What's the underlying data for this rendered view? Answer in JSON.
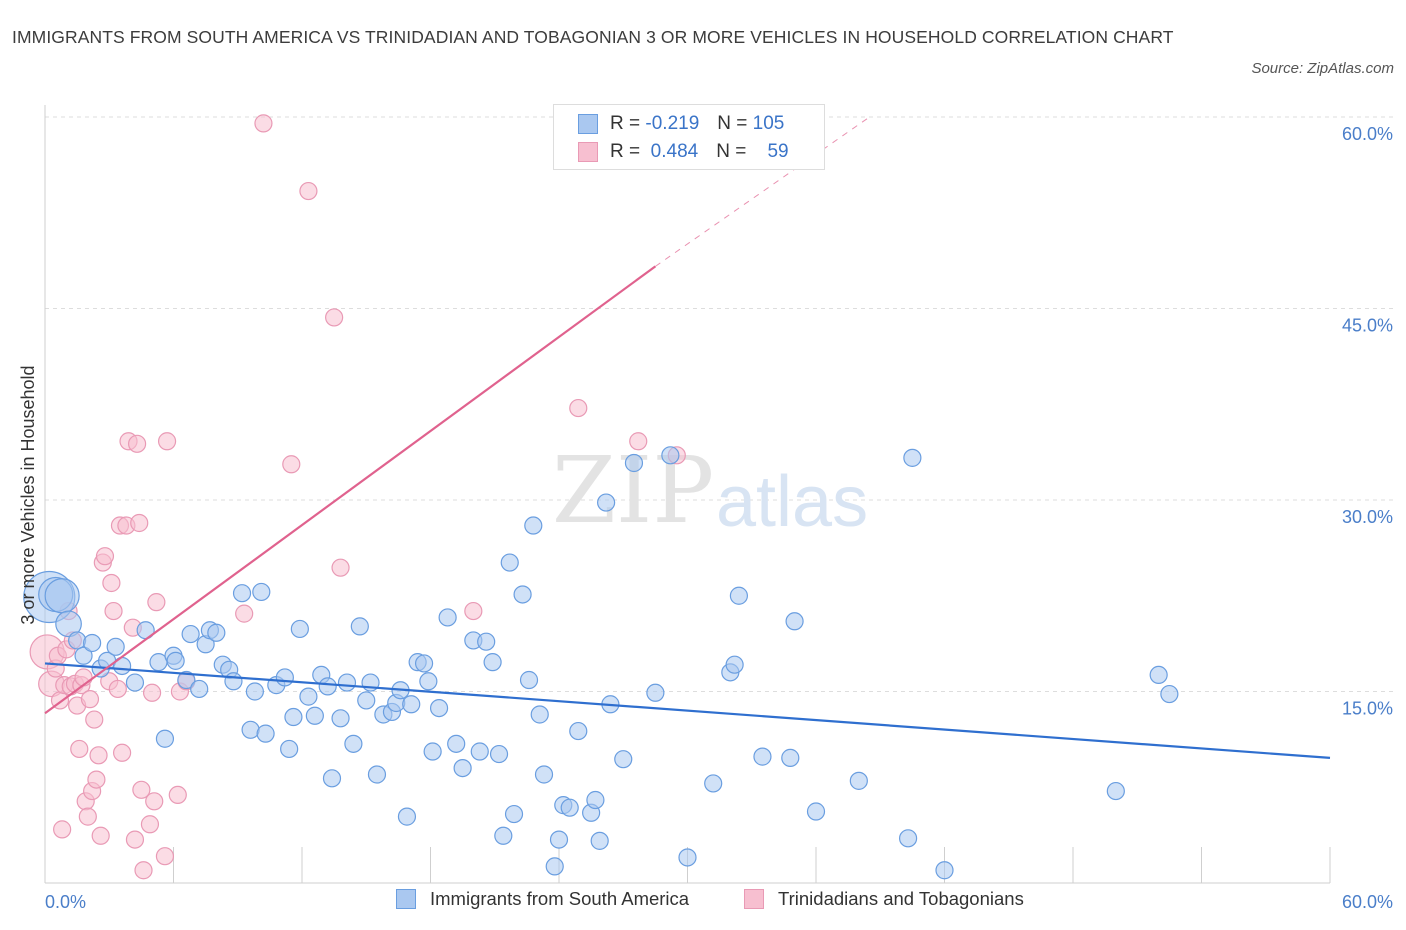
{
  "title": "IMMIGRANTS FROM SOUTH AMERICA VS TRINIDADIAN AND TOBAGONIAN 3 OR MORE VEHICLES IN HOUSEHOLD CORRELATION CHART",
  "source": "Source: ZipAtlas.com",
  "colors": {
    "blue_fill": "#aac8f0",
    "blue_stroke": "#6a9ee0",
    "blue_line": "#2f6fcf",
    "pink_fill": "#f7bfd0",
    "pink_stroke": "#e99ab5",
    "pink_line": "#e0628e",
    "grid": "#dddddd",
    "tick_text": "#4a7ec9"
  },
  "legend": {
    "blue": {
      "r_label": "R =",
      "r_value": "-0.219",
      "n_label": "N =",
      "n_value": "105"
    },
    "pink": {
      "r_label": "R =",
      "r_value": "0.484",
      "n_label": "N =",
      "n_value": "59"
    }
  },
  "bottom_legend": {
    "blue": "Immigrants from South America",
    "pink": "Trinidadians and Tobagonians"
  },
  "watermark": {
    "zip": "ZIP",
    "atlas": "atlas"
  },
  "chart_data": {
    "type": "scatter",
    "title": "IMMIGRANTS FROM SOUTH AMERICA VS TRINIDADIAN AND TOBAGONIAN 3 OR MORE VEHICLES IN HOUSEHOLD CORRELATION CHART",
    "xlabel": "",
    "ylabel": "3 or more Vehicles in Household",
    "xlim": [
      0,
      60
    ],
    "ylim": [
      0,
      60
    ],
    "x_tick_labels": [
      "0.0%",
      "60.0%"
    ],
    "y_ticks": [
      15,
      30,
      45,
      60
    ],
    "y_tick_labels": [
      "15.0%",
      "30.0%",
      "45.0%",
      "60.0%"
    ],
    "grid": true,
    "series": [
      {
        "name": "Immigrants from South America",
        "color": "#aac8f0",
        "trend": {
          "x": [
            0,
            60
          ],
          "y": [
            17.2,
            9.8
          ],
          "dashed_extension": false
        },
        "points": [
          [
            0.2,
            22.4,
            3
          ],
          [
            0.5,
            22.6,
            2
          ],
          [
            0.8,
            22.5,
            2
          ],
          [
            1.1,
            20.3,
            1.5
          ],
          [
            1.5,
            19.0,
            1
          ],
          [
            1.8,
            17.8,
            1
          ],
          [
            2.2,
            18.8,
            1
          ],
          [
            2.6,
            16.8,
            1
          ],
          [
            2.9,
            17.4,
            1
          ],
          [
            3.3,
            18.5,
            1
          ],
          [
            3.6,
            17.0,
            1
          ],
          [
            4.2,
            15.7,
            1
          ],
          [
            4.7,
            19.8,
            1
          ],
          [
            5.3,
            17.3,
            1
          ],
          [
            5.6,
            11.3,
            1
          ],
          [
            6.0,
            17.8,
            1
          ],
          [
            6.1,
            17.4,
            1
          ],
          [
            6.6,
            15.9,
            1
          ],
          [
            6.8,
            19.5,
            1
          ],
          [
            7.2,
            15.2,
            1
          ],
          [
            7.5,
            18.7,
            1
          ],
          [
            7.7,
            19.8,
            1
          ],
          [
            8.0,
            19.6,
            1
          ],
          [
            8.3,
            17.1,
            1
          ],
          [
            8.6,
            16.7,
            1
          ],
          [
            8.8,
            15.8,
            1
          ],
          [
            9.2,
            22.7,
            1
          ],
          [
            9.6,
            12.0,
            1
          ],
          [
            9.8,
            15.0,
            1
          ],
          [
            10.1,
            22.8,
            1
          ],
          [
            10.3,
            11.7,
            1
          ],
          [
            10.8,
            15.5,
            1
          ],
          [
            11.2,
            16.1,
            1
          ],
          [
            11.4,
            10.5,
            1
          ],
          [
            11.6,
            13.0,
            1
          ],
          [
            11.9,
            19.9,
            1
          ],
          [
            12.3,
            14.6,
            1
          ],
          [
            12.6,
            13.1,
            1
          ],
          [
            12.9,
            16.3,
            1
          ],
          [
            13.2,
            15.4,
            1
          ],
          [
            13.4,
            8.2,
            1
          ],
          [
            13.8,
            12.9,
            1
          ],
          [
            14.1,
            15.7,
            1
          ],
          [
            14.4,
            10.9,
            1
          ],
          [
            14.7,
            20.1,
            1
          ],
          [
            15.0,
            14.3,
            1
          ],
          [
            15.2,
            15.7,
            1
          ],
          [
            15.5,
            8.5,
            1
          ],
          [
            15.8,
            13.2,
            1
          ],
          [
            16.2,
            13.4,
            1
          ],
          [
            16.4,
            14.1,
            1
          ],
          [
            16.6,
            15.1,
            1
          ],
          [
            16.9,
            5.2,
            1
          ],
          [
            17.1,
            14.0,
            1
          ],
          [
            17.4,
            17.3,
            1
          ],
          [
            17.7,
            17.2,
            1
          ],
          [
            17.9,
            15.8,
            1
          ],
          [
            18.1,
            10.3,
            1
          ],
          [
            18.4,
            13.7,
            1
          ],
          [
            18.8,
            20.8,
            1
          ],
          [
            19.2,
            10.9,
            1
          ],
          [
            19.5,
            9.0,
            1
          ],
          [
            20.0,
            19.0,
            1
          ],
          [
            20.3,
            10.3,
            1
          ],
          [
            20.6,
            18.9,
            1
          ],
          [
            20.9,
            17.3,
            1
          ],
          [
            21.2,
            10.1,
            1
          ],
          [
            21.4,
            3.7,
            1
          ],
          [
            21.7,
            25.1,
            1
          ],
          [
            21.9,
            5.4,
            1
          ],
          [
            22.3,
            22.6,
            1
          ],
          [
            22.8,
            28.0,
            1
          ],
          [
            22.6,
            15.9,
            1
          ],
          [
            23.1,
            13.2,
            1
          ],
          [
            23.3,
            8.5,
            1
          ],
          [
            23.8,
            1.3,
            1
          ],
          [
            24.0,
            3.4,
            1
          ],
          [
            24.2,
            6.1,
            1
          ],
          [
            24.5,
            5.9,
            1
          ],
          [
            24.9,
            11.9,
            1
          ],
          [
            25.5,
            5.5,
            1
          ],
          [
            25.7,
            6.5,
            1
          ],
          [
            25.9,
            3.3,
            1
          ],
          [
            26.2,
            29.8,
            1
          ],
          [
            26.4,
            14.0,
            1
          ],
          [
            27.0,
            9.7,
            1
          ],
          [
            27.5,
            32.9,
            1
          ],
          [
            28.5,
            14.9,
            1
          ],
          [
            29.2,
            33.5,
            1
          ],
          [
            30.0,
            2.0,
            1
          ],
          [
            31.2,
            7.8,
            1
          ],
          [
            32.0,
            16.5,
            1
          ],
          [
            32.2,
            17.1,
            1
          ],
          [
            32.4,
            22.5,
            1
          ],
          [
            33.5,
            9.9,
            1
          ],
          [
            34.8,
            9.8,
            1
          ],
          [
            36.0,
            5.6,
            1
          ],
          [
            38.0,
            8.0,
            1
          ],
          [
            40.3,
            3.5,
            1
          ],
          [
            40.5,
            33.3,
            1
          ],
          [
            42.0,
            1.0,
            1
          ],
          [
            50.0,
            7.2,
            1
          ],
          [
            52.0,
            16.3,
            1
          ],
          [
            52.5,
            14.8,
            1
          ],
          [
            35.0,
            20.5,
            1
          ]
        ]
      },
      {
        "name": "Trinidadians and Tobagonians",
        "color": "#f7bfd0",
        "trend": {
          "x": [
            0,
            28.5
          ],
          "y": [
            13.3,
            48.3
          ],
          "dashed_extension": {
            "x": [
              28.5,
              38.5
            ],
            "y": [
              48.3,
              60.0
            ]
          }
        },
        "points": [
          [
            0.1,
            18.1,
            2
          ],
          [
            0.3,
            15.6,
            1.5
          ],
          [
            0.5,
            16.8,
            1
          ],
          [
            0.6,
            17.8,
            1
          ],
          [
            0.7,
            14.3,
            1
          ],
          [
            0.8,
            4.2,
            1
          ],
          [
            0.9,
            15.5,
            1
          ],
          [
            1.0,
            18.3,
            1
          ],
          [
            1.1,
            21.3,
            1
          ],
          [
            1.2,
            15.4,
            1
          ],
          [
            1.3,
            19.0,
            1
          ],
          [
            1.4,
            15.6,
            1
          ],
          [
            1.5,
            13.9,
            1
          ],
          [
            1.6,
            10.5,
            1
          ],
          [
            1.7,
            15.5,
            1
          ],
          [
            1.8,
            16.1,
            1
          ],
          [
            1.9,
            6.4,
            1
          ],
          [
            2.0,
            5.2,
            1
          ],
          [
            2.1,
            14.4,
            1
          ],
          [
            2.2,
            7.2,
            1
          ],
          [
            2.3,
            12.8,
            1
          ],
          [
            2.4,
            8.1,
            1
          ],
          [
            2.5,
            10.0,
            1
          ],
          [
            2.6,
            3.7,
            1
          ],
          [
            2.7,
            25.1,
            1
          ],
          [
            2.8,
            25.6,
            1
          ],
          [
            3.0,
            15.8,
            1
          ],
          [
            3.1,
            23.5,
            1
          ],
          [
            3.2,
            21.3,
            1
          ],
          [
            3.4,
            15.2,
            1
          ],
          [
            3.5,
            28.0,
            1
          ],
          [
            3.6,
            10.2,
            1
          ],
          [
            3.8,
            28.0,
            1
          ],
          [
            3.9,
            34.6,
            1
          ],
          [
            4.1,
            20.0,
            1
          ],
          [
            4.2,
            3.4,
            1
          ],
          [
            4.3,
            34.4,
            1
          ],
          [
            4.4,
            28.2,
            1
          ],
          [
            4.5,
            7.3,
            1
          ],
          [
            4.6,
            1.0,
            1
          ],
          [
            4.9,
            4.6,
            1
          ],
          [
            5.0,
            14.9,
            1
          ],
          [
            5.1,
            6.4,
            1
          ],
          [
            5.2,
            22.0,
            1
          ],
          [
            5.6,
            2.1,
            1
          ],
          [
            5.7,
            34.6,
            1
          ],
          [
            6.2,
            6.9,
            1
          ],
          [
            6.3,
            15.0,
            1
          ],
          [
            6.6,
            15.8,
            1
          ],
          [
            9.3,
            21.1,
            1
          ],
          [
            10.2,
            59.5,
            1
          ],
          [
            11.5,
            32.8,
            1
          ],
          [
            12.3,
            54.2,
            1
          ],
          [
            13.5,
            44.3,
            1
          ],
          [
            13.8,
            24.7,
            1
          ],
          [
            20.0,
            21.3,
            1
          ],
          [
            24.9,
            37.2,
            1
          ],
          [
            27.7,
            34.6,
            1
          ],
          [
            29.5,
            33.5,
            1
          ]
        ]
      }
    ]
  }
}
